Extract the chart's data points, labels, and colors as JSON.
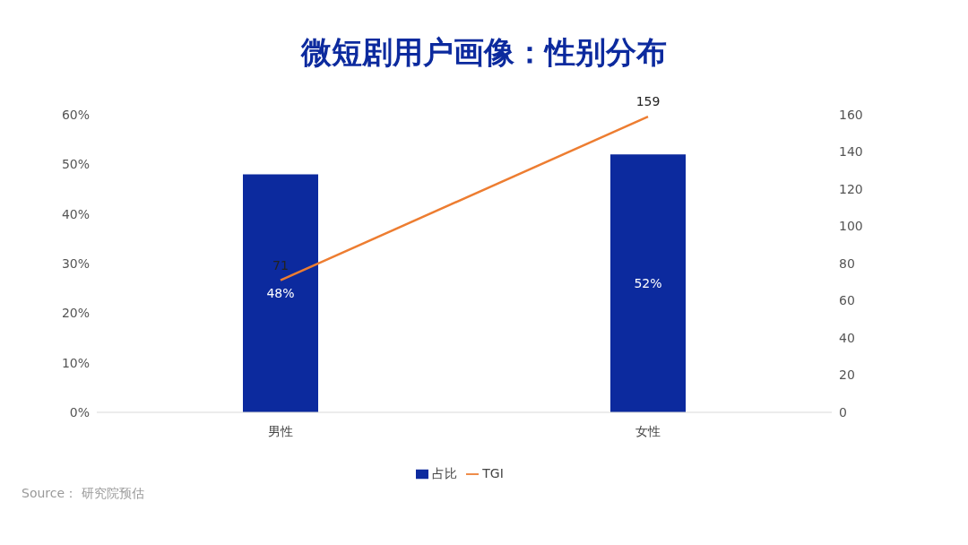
{
  "chart_data": {
    "type": "bar",
    "title": "微短剧用户画像：性别分布",
    "categories": [
      "男性",
      "女性"
    ],
    "series": [
      {
        "name": "占比",
        "color": "#0c2a9e",
        "values": [
          48,
          52
        ],
        "value_labels": [
          "48%",
          "52%"
        ]
      },
      {
        "name": "TGI",
        "type": "line",
        "axis": "y2",
        "color": "#ed7d31",
        "values": [
          71,
          159
        ],
        "value_labels": [
          "71",
          "159"
        ]
      }
    ],
    "ylim": [
      0,
      60
    ],
    "yticks": [
      {
        "value": 0,
        "label": "0%"
      },
      {
        "value": 10,
        "label": "10%"
      },
      {
        "value": 20,
        "label": "20%"
      },
      {
        "value": 30,
        "label": "30%"
      },
      {
        "value": 40,
        "label": "40%"
      },
      {
        "value": 50,
        "label": "50%"
      },
      {
        "value": 60,
        "label": "60%"
      }
    ],
    "y2lim": [
      0,
      160
    ],
    "y2ticks": [
      0,
      20,
      40,
      60,
      80,
      100,
      120,
      140,
      160
    ],
    "grid": false,
    "legend": "bottom",
    "marker": "none",
    "line_style": "solid",
    "annotations": [
      "Source： 研究院预估"
    ]
  }
}
